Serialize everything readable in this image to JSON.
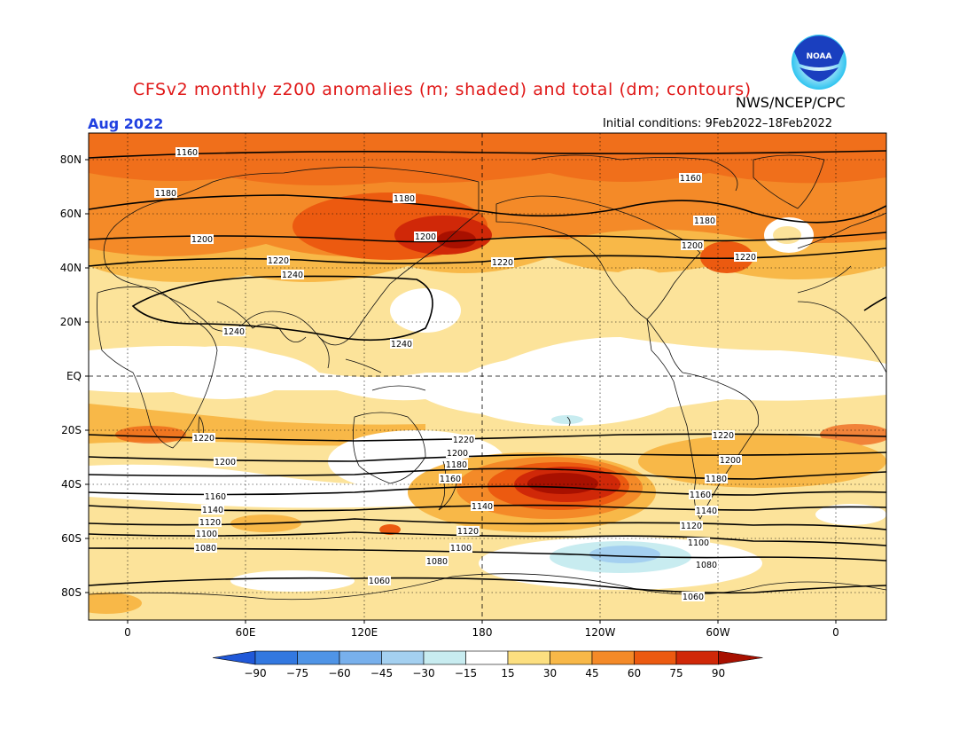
{
  "title": "CFSv2 monthly z200 anomalies (m; shaded) and total (dm; contours)",
  "agency": "NWS/NCEP/CPC",
  "period": "Aug 2022",
  "initial_conditions": "Initial conditions: 9Feb2022–18Feb2022",
  "logo_text": "NOAA",
  "map": {
    "lat_labels": [
      "80N",
      "60N",
      "40N",
      "20N",
      "EQ",
      "20S",
      "40S",
      "60S",
      "80S"
    ],
    "lon_labels": [
      "0",
      "60E",
      "120E",
      "180",
      "120W",
      "60W",
      "0"
    ]
  },
  "colorbar": {
    "labels": [
      "-90",
      "-75",
      "-60",
      "-45",
      "-30",
      "-15",
      "15",
      "30",
      "45",
      "60",
      "75",
      "90"
    ],
    "colors": [
      "#2058d8",
      "#3278e0",
      "#4f94e6",
      "#78b0ec",
      "#a4d0f0",
      "#c8ecf0",
      "#ffffff",
      "#fcdf80",
      "#f8b848",
      "#f48a28",
      "#ec5a10",
      "#d02808",
      "#a81000"
    ]
  },
  "contours": [
    {
      "value": "1240",
      "labels": [
        "1240",
        "1240",
        "1240"
      ]
    },
    {
      "value": "1220",
      "labels": [
        "1220",
        "1220",
        "1220"
      ]
    },
    {
      "value": "1200",
      "labels": [
        "1200",
        "1200",
        "1200"
      ]
    },
    {
      "value": "1180",
      "labels": [
        "1180",
        "1180",
        "1180"
      ]
    },
    {
      "value": "1160",
      "labels": [
        "1160",
        "1160"
      ]
    },
    {
      "value": "1220s",
      "labels": [
        "1220",
        "1220",
        "1220"
      ]
    },
    {
      "value": "1200s",
      "labels": [
        "1200",
        "1200",
        "1200"
      ]
    },
    {
      "value": "1180s",
      "labels": [
        "1180",
        "1180"
      ]
    },
    {
      "value": "1160s",
      "labels": [
        "1160",
        "1160",
        "1160"
      ]
    },
    {
      "value": "1140s",
      "labels": [
        "1140",
        "1140",
        "1140"
      ]
    },
    {
      "value": "1120s",
      "labels": [
        "1120",
        "1120",
        "1120"
      ]
    },
    {
      "value": "1100s",
      "labels": [
        "1100",
        "1100",
        "1100"
      ]
    },
    {
      "value": "1080s",
      "labels": [
        "1080",
        "1080",
        "1080"
      ]
    },
    {
      "value": "1060s",
      "labels": [
        "1060",
        "1060",
        "1060"
      ]
    }
  ]
}
